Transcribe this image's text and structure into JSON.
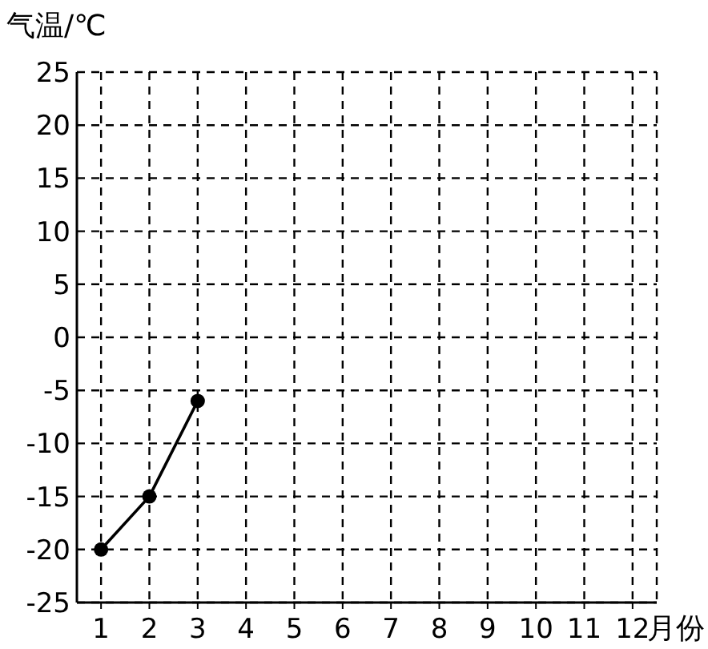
{
  "chart_data": {
    "type": "line",
    "ylabel": "气温/℃",
    "xlabel": "月份",
    "x": [
      1,
      2,
      3
    ],
    "values": [
      -20,
      -15,
      -6
    ],
    "color": "#000000",
    "marker": "circle",
    "grid": true,
    "xlim": [
      0.5,
      12.5
    ],
    "ylim": [
      -25,
      25
    ],
    "xticks": [
      1,
      2,
      3,
      4,
      5,
      6,
      7,
      8,
      9,
      10,
      11,
      12
    ],
    "yticks": [
      -25,
      -20,
      -15,
      -10,
      -5,
      0,
      5,
      10,
      15,
      20,
      25
    ]
  }
}
